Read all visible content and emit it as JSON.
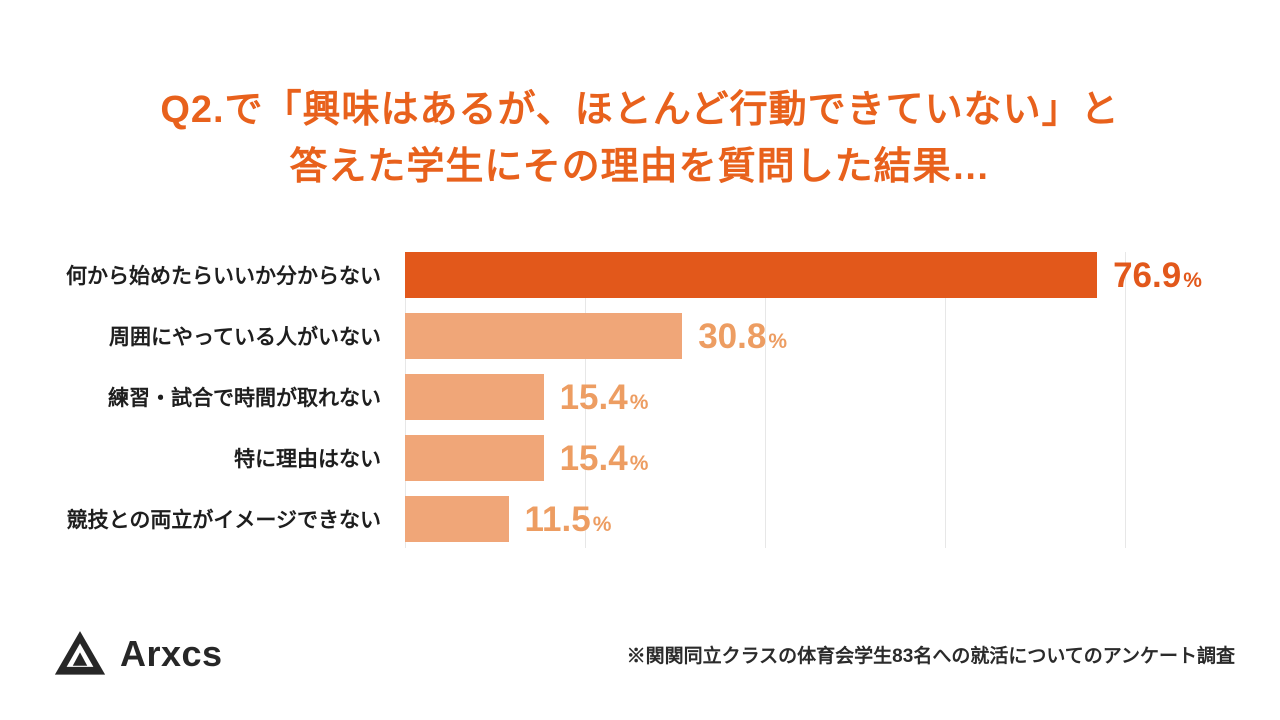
{
  "title": {
    "line1": "Q2.で「興味はあるが、ほとんど行動できていない」と",
    "line2": "答えた学生にその理由を質問した結果…"
  },
  "chart_data": {
    "type": "bar",
    "orientation": "horizontal",
    "title": "Q2.で「興味はあるが、ほとんど行動できていない」と答えた学生にその理由を質問した結果…",
    "categories": [
      "何から始めたらいいか分からない",
      "周囲にやっている人がいない",
      "練習・試合で時間が取れない",
      "特に理由はない",
      "競技との両立がイメージできない"
    ],
    "values": [
      76.9,
      30.8,
      15.4,
      15.4,
      11.5
    ],
    "value_labels": [
      "76.9",
      "30.8",
      "15.4",
      "15.4",
      "11.5"
    ],
    "unit": "%",
    "xlim": [
      0,
      80
    ],
    "grid": true,
    "grid_interval": 20,
    "legend": "none",
    "bar_colors": [
      "#E2581B",
      "#F0A678",
      "#F0A678",
      "#F0A678",
      "#F0A678"
    ],
    "value_label_colors": [
      "#E2581B",
      "#ED9D62",
      "#ED9D62",
      "#ED9D62",
      "#ED9D62"
    ]
  },
  "footer": {
    "logo_text": "Arxcs",
    "note": "※関関同立クラスの体育会学生83名への就活についてのアンケート調査"
  },
  "colors": {
    "title": "#E8611C",
    "bar_primary": "#E2581B",
    "bar_secondary": "#F0A678",
    "category_label": "#1e1e1e",
    "note_text": "#2b2b2b",
    "logo": "#272727",
    "gridline": "#e7e7e7"
  }
}
